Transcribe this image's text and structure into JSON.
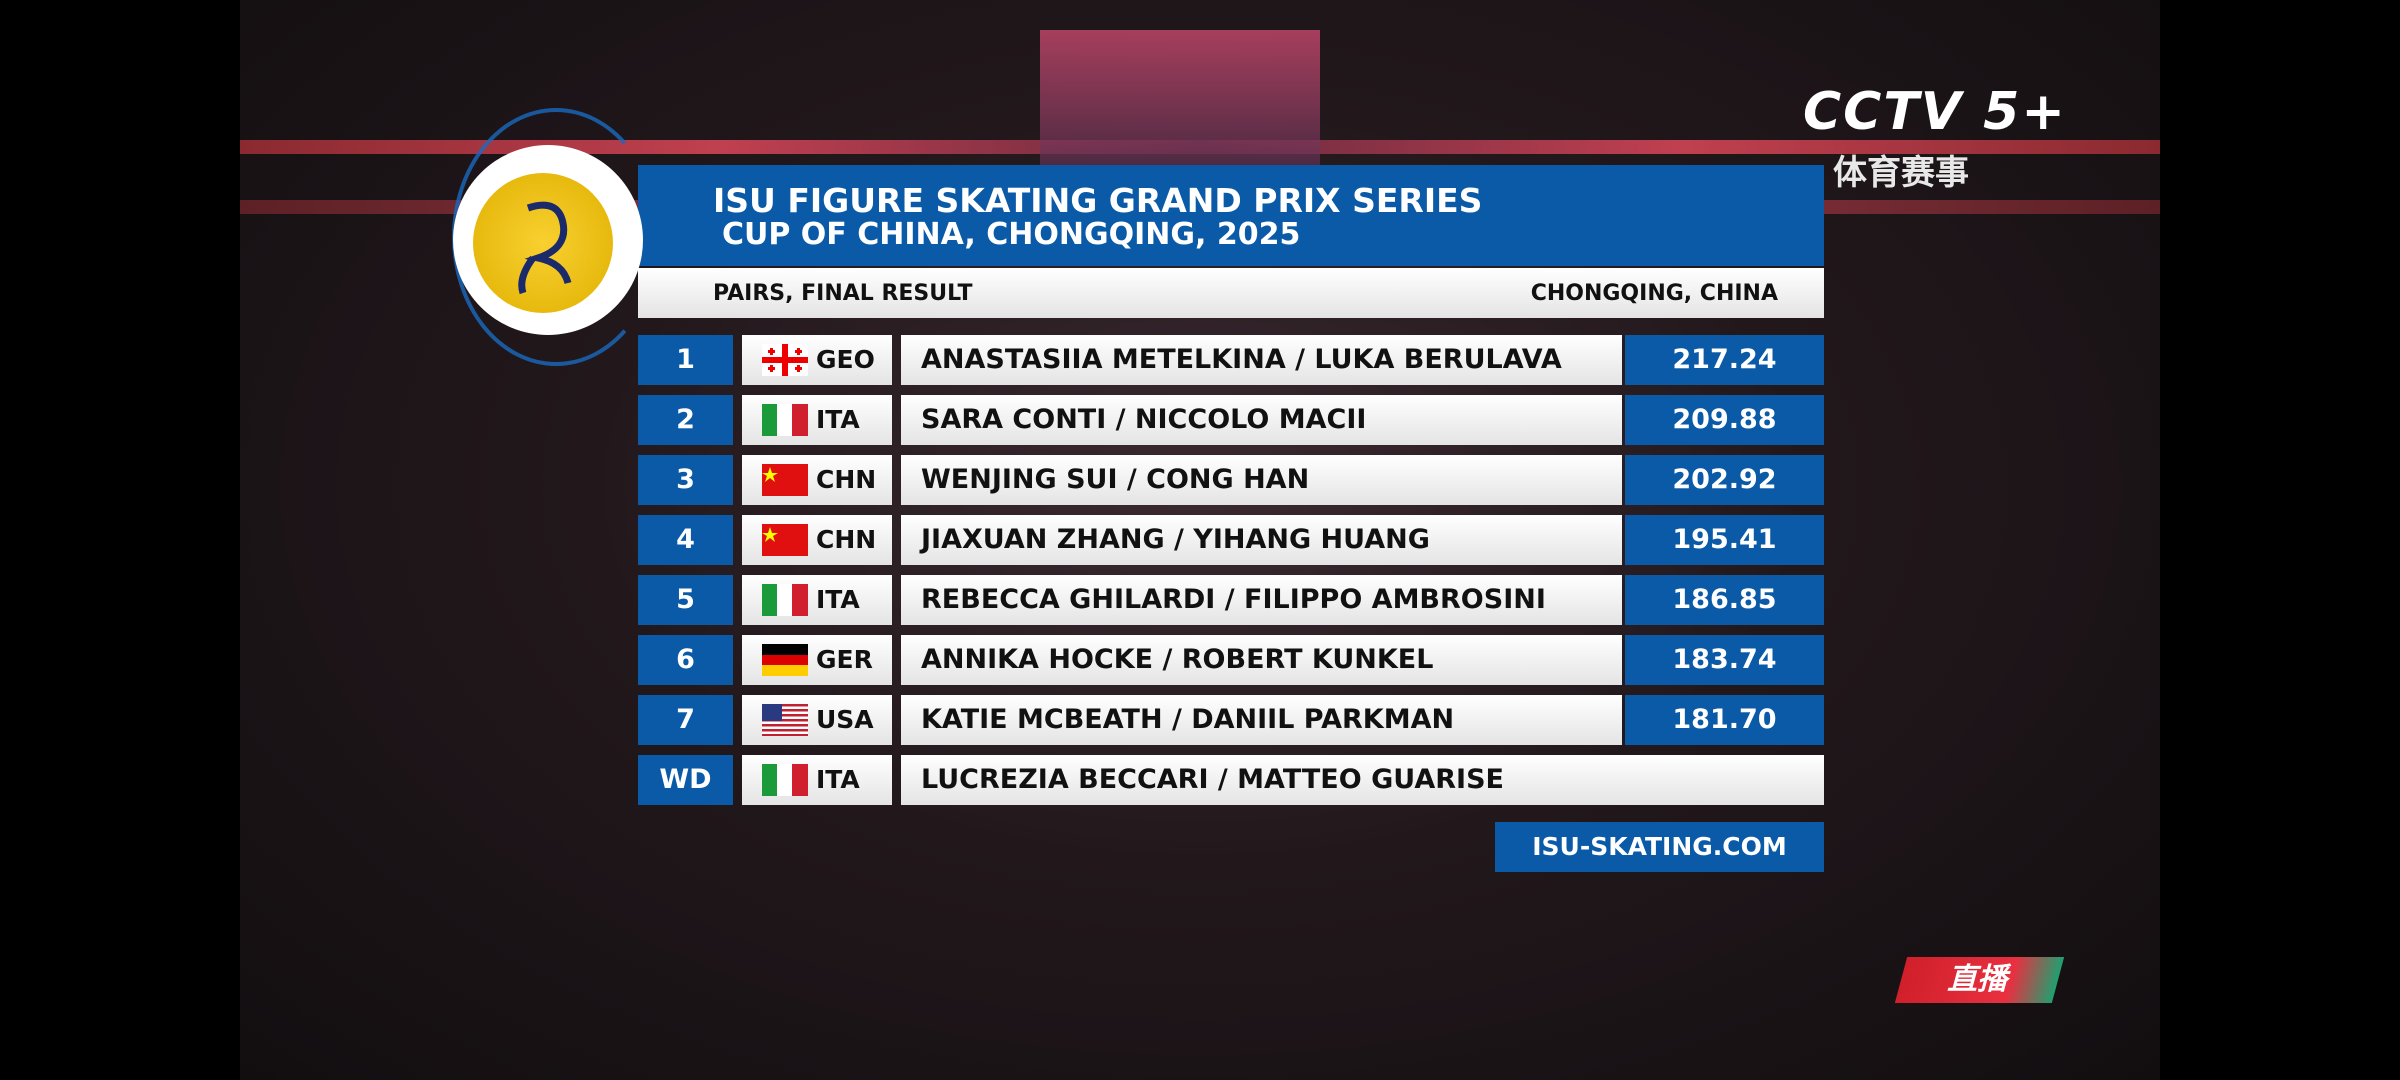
{
  "broadcast": {
    "channel": "CCTV 5+",
    "channel_sub": "体育赛事",
    "live": "直播"
  },
  "header": {
    "title": "ISU FIGURE SKATING GRAND PRIX SERIES",
    "subtitle": "CUP OF CHINA, CHONGQING, 2025",
    "event": "PAIRS, FINAL RESULT",
    "location": "CHONGQING, CHINA"
  },
  "table": {
    "rows": [
      [
        "1",
        "GEO",
        "ANASTASIIA METELKINA / LUKA BERULAVA",
        "217.24"
      ],
      [
        "2",
        "ITA",
        "SARA CONTI / NICCOLO MACII",
        "209.88"
      ],
      [
        "3",
        "CHN",
        "WENJING SUI / CONG HAN",
        "202.92"
      ],
      [
        "4",
        "CHN",
        "JIAXUAN ZHANG / YIHANG HUANG",
        "195.41"
      ],
      [
        "5",
        "ITA",
        "REBECCA GHILARDI / FILIPPO AMBROSINI",
        "186.85"
      ],
      [
        "6",
        "GER",
        "ANNIKA HOCKE / ROBERT KUNKEL",
        "183.74"
      ],
      [
        "7",
        "USA",
        "KATIE MCBEATH / DANIIL PARKMAN",
        "181.70"
      ],
      [
        "WD",
        "ITA",
        "LUCREZIA BECCARI / MATTEO GUARISE"
      ]
    ]
  },
  "footer": {
    "url": "ISU-SKATING.COM"
  }
}
